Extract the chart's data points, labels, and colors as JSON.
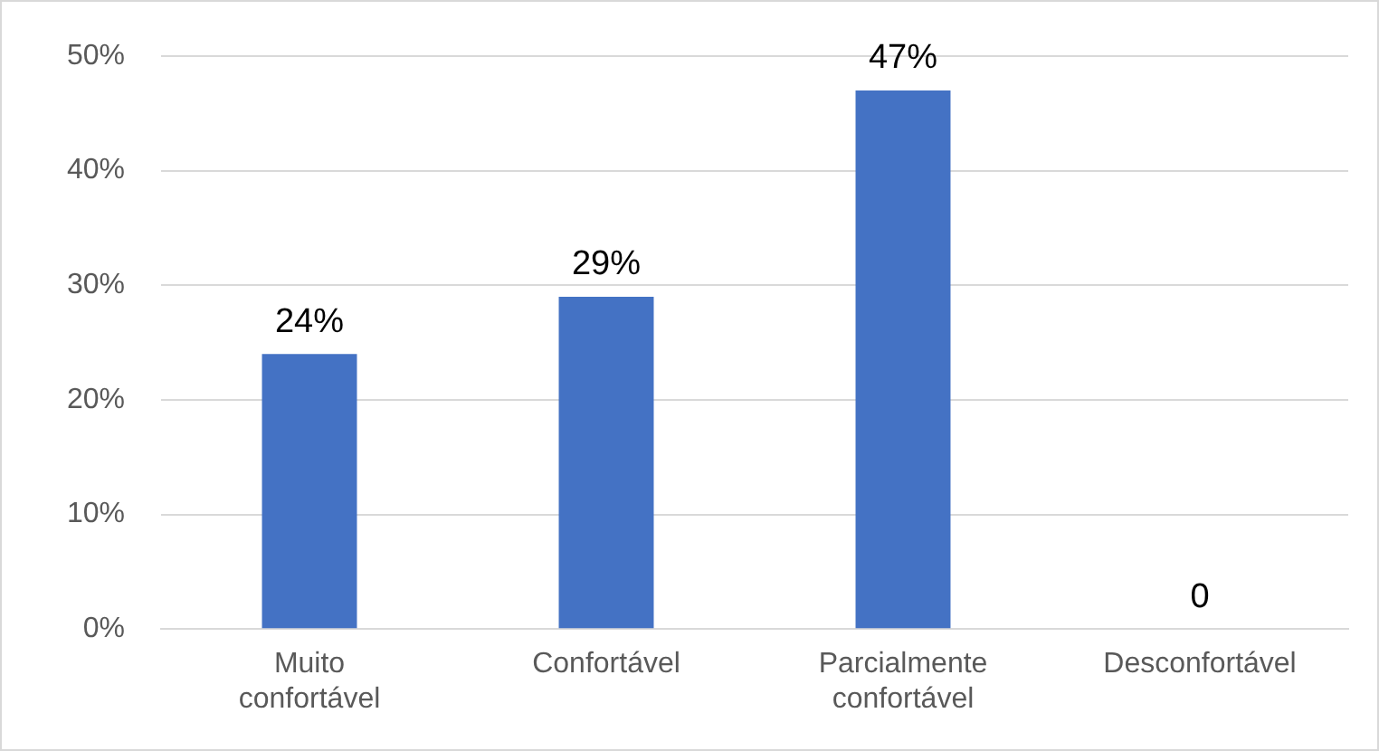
{
  "chart_data": {
    "type": "bar",
    "categories": [
      "Muito confortável",
      "Confortável",
      "Parcialmente confortável",
      "Desconfortável"
    ],
    "values": [
      24,
      29,
      47,
      0
    ],
    "value_labels": [
      "24%",
      "29%",
      "47%",
      "0"
    ],
    "color": "#4472c4",
    "ylim": [
      0,
      50
    ],
    "yticks": [
      {
        "value": 0,
        "label": "0%"
      },
      {
        "value": 10,
        "label": "10%"
      },
      {
        "value": 20,
        "label": "20%"
      },
      {
        "value": 30,
        "label": "30%"
      },
      {
        "value": 40,
        "label": "40%"
      },
      {
        "value": 50,
        "label": "50%"
      }
    ],
    "grid": "y",
    "legend": false
  }
}
